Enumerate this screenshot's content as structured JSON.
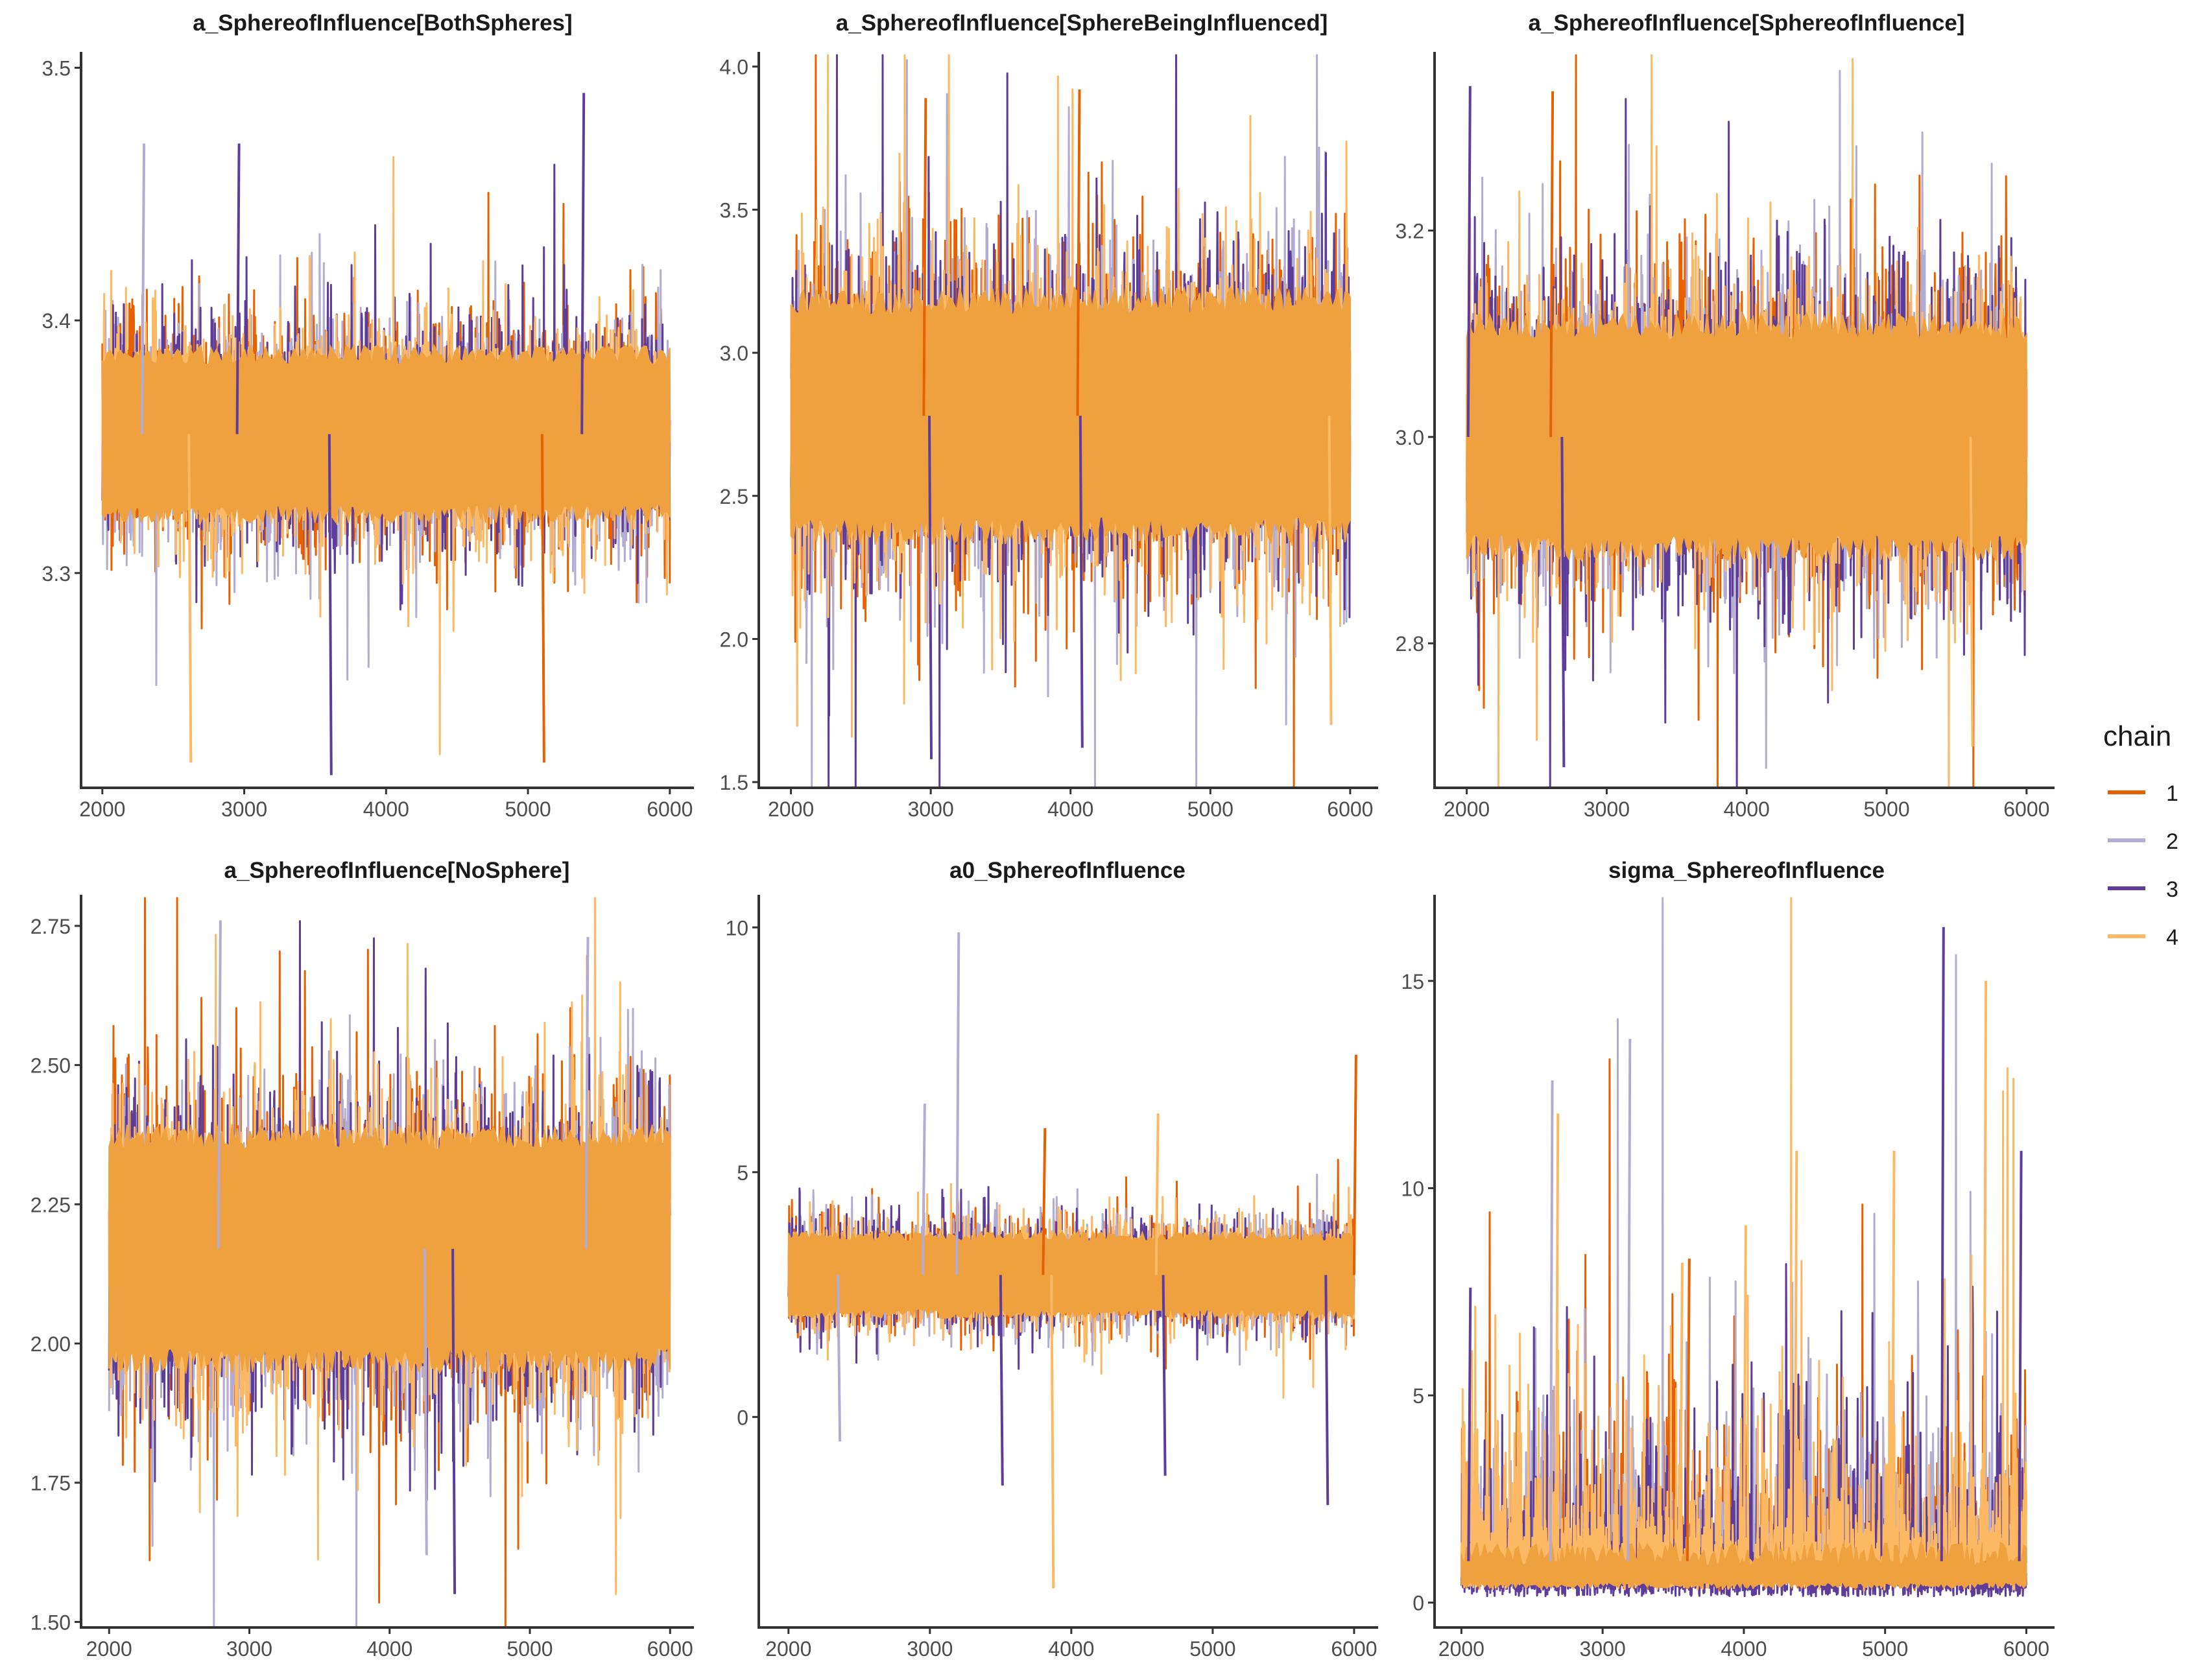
{
  "chart_data": [
    {
      "type": "line",
      "title": "a_SphereofInfluence[BothSpheres]",
      "xlabel": "",
      "ylabel": "",
      "xlim": [
        1850,
        6170
      ],
      "ylim": [
        3.215,
        3.505
      ],
      "x_ticks": [
        2000,
        3000,
        4000,
        5000,
        6000
      ],
      "y_ticks": [
        3.3,
        3.4,
        3.5
      ],
      "y_tick_labels": [
        "3.3",
        "3.4",
        "3.5"
      ],
      "x_range": [
        2000,
        6000
      ],
      "central": 3.355,
      "sd": 0.022,
      "spike_mult": 2.2,
      "spikes": [
        {
          "chain": "3",
          "x": 5380,
          "y": 3.49
        },
        {
          "chain": "3",
          "x": 2950,
          "y": 3.47
        },
        {
          "chain": "2",
          "x": 2280,
          "y": 3.47
        },
        {
          "chain": "4",
          "x": 2610,
          "y": 3.225
        },
        {
          "chain": "3",
          "x": 3600,
          "y": 3.22
        },
        {
          "chain": "1",
          "x": 5100,
          "y": 3.225
        }
      ]
    },
    {
      "type": "line",
      "title": "a_SphereofInfluence[SphereBeingInfluenced]",
      "xlabel": "",
      "ylabel": "",
      "xlim": [
        1770,
        6200
      ],
      "ylim": [
        1.48,
        4.04
      ],
      "x_ticks": [
        2000,
        3000,
        4000,
        5000,
        6000
      ],
      "y_ticks": [
        1.5,
        2.0,
        2.5,
        3.0,
        3.5,
        4.0
      ],
      "y_tick_labels": [
        "1.5",
        "2.0",
        "2.5",
        "3.0",
        "3.5",
        "4.0"
      ],
      "x_range": [
        2000,
        6000
      ],
      "central": 2.78,
      "sd": 0.28,
      "spike_mult": 2.5,
      "spikes": [
        {
          "chain": "1",
          "x": 4050,
          "y": 3.92
        },
        {
          "chain": "1",
          "x": 2950,
          "y": 3.89
        },
        {
          "chain": "3",
          "x": 2990,
          "y": 1.58
        },
        {
          "chain": "3",
          "x": 4070,
          "y": 1.62
        },
        {
          "chain": "4",
          "x": 5850,
          "y": 1.7
        }
      ]
    },
    {
      "type": "line",
      "title": "a_SphereofInfluence[SphereofInfluence]",
      "xlabel": "",
      "ylabel": "",
      "xlim": [
        1770,
        6200
      ],
      "ylim": [
        2.66,
        3.37
      ],
      "x_ticks": [
        2000,
        3000,
        4000,
        5000,
        6000
      ],
      "y_ticks": [
        2.8,
        3.0,
        3.2
      ],
      "y_tick_labels": [
        "2.8",
        "3.0",
        "3.2"
      ],
      "x_range": [
        2000,
        6000
      ],
      "central": 3.0,
      "sd": 0.075,
      "spike_mult": 2.4,
      "spikes": [
        {
          "chain": "3",
          "x": 2010,
          "y": 3.34
        },
        {
          "chain": "1",
          "x": 2600,
          "y": 3.335
        },
        {
          "chain": "3",
          "x": 2680,
          "y": 2.68
        },
        {
          "chain": "4",
          "x": 5600,
          "y": 2.7
        }
      ]
    },
    {
      "type": "line",
      "title": "a_SphereofInfluence[NoSphere]",
      "xlabel": "",
      "ylabel": "",
      "xlim": [
        1800,
        6170
      ],
      "ylim": [
        1.49,
        2.8
      ],
      "x_ticks": [
        2000,
        3000,
        4000,
        5000,
        6000
      ],
      "y_ticks": [
        1.5,
        1.75,
        2.0,
        2.25,
        2.5,
        2.75
      ],
      "y_tick_labels": [
        "1.50",
        "1.75",
        "2.00",
        "2.25",
        "2.50",
        "2.75"
      ],
      "x_range": [
        2000,
        6000
      ],
      "central": 2.17,
      "sd": 0.14,
      "spike_mult": 2.4,
      "spikes": [
        {
          "chain": "2",
          "x": 2780,
          "y": 2.76
        },
        {
          "chain": "2",
          "x": 5400,
          "y": 2.73
        },
        {
          "chain": "3",
          "x": 4450,
          "y": 1.55
        },
        {
          "chain": "2",
          "x": 4250,
          "y": 1.62
        }
      ]
    },
    {
      "type": "line",
      "title": "a0_SphereofInfluence",
      "xlabel": "",
      "ylabel": "",
      "xlim": [
        1790,
        6170
      ],
      "ylim": [
        -4.3,
        10.6
      ],
      "x_ticks": [
        2000,
        3000,
        4000,
        5000,
        6000
      ],
      "y_ticks": [
        0,
        5,
        10
      ],
      "y_tick_labels": [
        "0",
        "5",
        "10"
      ],
      "x_range": [
        2000,
        6000
      ],
      "central": 2.9,
      "sd": 0.55,
      "spike_mult": 1.8,
      "spikes": [
        {
          "chain": "2",
          "x": 3190,
          "y": 9.9
        },
        {
          "chain": "1",
          "x": 6000,
          "y": 7.4
        },
        {
          "chain": "2",
          "x": 2950,
          "y": 6.4
        },
        {
          "chain": "4",
          "x": 4600,
          "y": 6.2
        },
        {
          "chain": "1",
          "x": 3800,
          "y": 5.9
        },
        {
          "chain": "4",
          "x": 3860,
          "y": -3.5
        },
        {
          "chain": "3",
          "x": 5800,
          "y": -1.8
        },
        {
          "chain": "3",
          "x": 3500,
          "y": -1.4
        },
        {
          "chain": "3",
          "x": 4650,
          "y": -1.2
        },
        {
          "chain": "2",
          "x": 2350,
          "y": -0.5
        }
      ]
    },
    {
      "type": "line",
      "title": "sigma_SphereofInfluence",
      "xlabel": "",
      "ylabel": "",
      "xlim": [
        1810,
        6200
      ],
      "ylim": [
        -0.6,
        17.0
      ],
      "x_ticks": [
        2000,
        3000,
        4000,
        5000,
        6000
      ],
      "y_ticks": [
        0,
        5,
        10,
        15
      ],
      "y_tick_labels": [
        "0",
        "5",
        "10",
        "15"
      ],
      "x_range": [
        2000,
        6000
      ],
      "mode": "skewed",
      "spikes": [
        {
          "chain": "3",
          "x": 5400,
          "y": 16.3
        },
        {
          "chain": "4",
          "x": 5700,
          "y": 15.0
        },
        {
          "chain": "2",
          "x": 3180,
          "y": 13.6
        },
        {
          "chain": "2",
          "x": 2630,
          "y": 12.6
        },
        {
          "chain": "4",
          "x": 2670,
          "y": 11.8
        },
        {
          "chain": "3",
          "x": 5950,
          "y": 10.9
        },
        {
          "chain": "4",
          "x": 5050,
          "y": 10.9
        },
        {
          "chain": "4",
          "x": 4360,
          "y": 10.9
        },
        {
          "chain": "4",
          "x": 4000,
          "y": 9.1
        },
        {
          "chain": "4",
          "x": 3550,
          "y": 8.2
        },
        {
          "chain": "3",
          "x": 2050,
          "y": 7.6
        },
        {
          "chain": "1",
          "x": 3600,
          "y": 8.3
        }
      ]
    }
  ],
  "legend": {
    "title": "chain",
    "entries": [
      {
        "label": "1",
        "color": "#E66101"
      },
      {
        "label": "2",
        "color": "#B2ABD2"
      },
      {
        "label": "3",
        "color": "#5E3C99"
      },
      {
        "label": "4",
        "color": "#FDB863"
      }
    ]
  },
  "draw_order": [
    "1",
    "2",
    "3",
    "4"
  ],
  "style": {
    "fill_color": "#EFA140",
    "axis_color": "#333333",
    "tick_text_color": "#4d4d4d"
  }
}
